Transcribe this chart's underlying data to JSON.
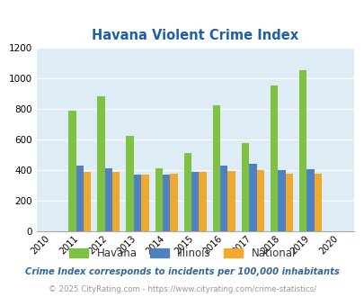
{
  "title": "Havana Violent Crime Index",
  "years": [
    2010,
    2011,
    2012,
    2013,
    2014,
    2015,
    2016,
    2017,
    2018,
    2019,
    2020
  ],
  "bar_years": [
    2011,
    2012,
    2013,
    2014,
    2015,
    2016,
    2017,
    2018,
    2019
  ],
  "havana": [
    790,
    880,
    625,
    410,
    515,
    825,
    575,
    950,
    1055
  ],
  "illinois": [
    430,
    415,
    370,
    370,
    390,
    430,
    440,
    400,
    405
  ],
  "national": [
    390,
    390,
    370,
    375,
    390,
    398,
    400,
    380,
    375
  ],
  "havana_color": "#7dc242",
  "illinois_color": "#4f81bd",
  "national_color": "#f0a830",
  "bg_color": "#deedf5",
  "title_color": "#1f5fa6",
  "ylim": [
    0,
    1200
  ],
  "yticks": [
    0,
    200,
    400,
    600,
    800,
    1000,
    1200
  ],
  "footnote1": "Crime Index corresponds to incidents per 100,000 inhabitants",
  "footnote2": "© 2025 CityRating.com - https://www.cityrating.com/crime-statistics/",
  "legend_labels": [
    "Havana",
    "Illinois",
    "National"
  ]
}
